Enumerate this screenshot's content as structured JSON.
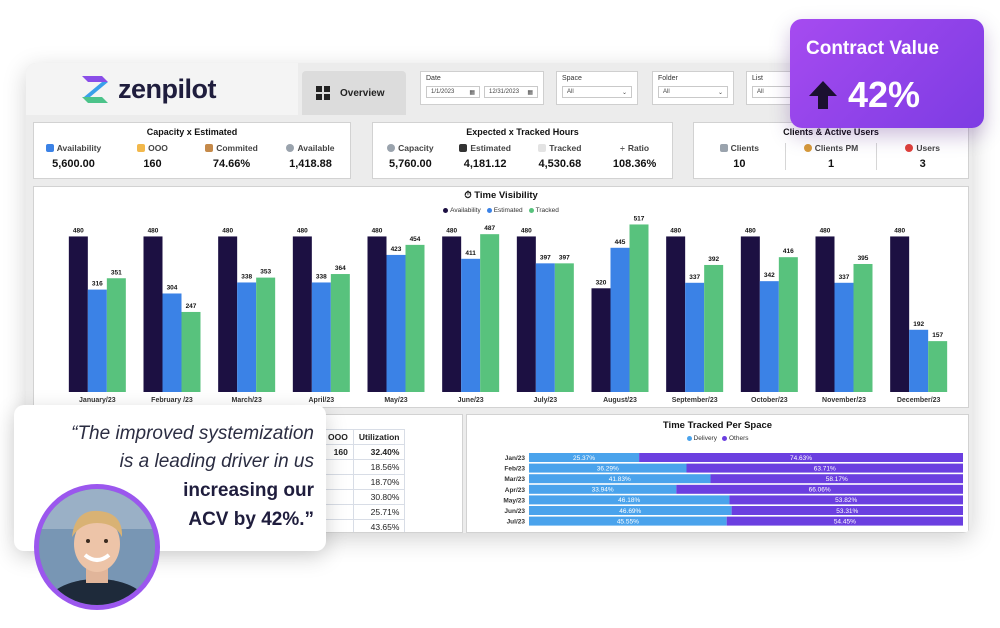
{
  "brand": {
    "name": "zenpilot"
  },
  "tabs": {
    "overview": "Overview"
  },
  "filters": {
    "date": {
      "label": "Date",
      "start": "1/1/2023",
      "end": "12/31/2023"
    },
    "space": {
      "label": "Space",
      "value": "All"
    },
    "folder": {
      "label": "Folder",
      "value": "All"
    },
    "list": {
      "label": "List",
      "value": "All"
    }
  },
  "cards": {
    "capacity_estimated": {
      "title": "Capacity x Estimated",
      "kpis": [
        {
          "label": "Availability",
          "value": "5,600.00",
          "icon": "bar-chart-icon"
        },
        {
          "label": "OOO",
          "value": "160",
          "icon": "beach-icon"
        },
        {
          "label": "Commited",
          "value": "74.66%",
          "icon": "hourglass-icon"
        },
        {
          "label": "Available",
          "value": "1,418.88",
          "icon": "gauge-icon"
        }
      ]
    },
    "expected_tracked": {
      "title": "Expected x Tracked Hours",
      "kpis": [
        {
          "label": "Capacity",
          "value": "5,760.00",
          "icon": "gauge-icon"
        },
        {
          "label": "Estimated",
          "value": "4,181.12",
          "icon": "stopwatch-icon"
        },
        {
          "label": "Tracked",
          "value": "4,530.68",
          "icon": "clipboard-icon"
        },
        {
          "label": "Ratio",
          "value": "108.36%",
          "icon": "divide-icon"
        }
      ]
    },
    "clients_users": {
      "title": "Clients & Active Users",
      "kpis": [
        {
          "label": "Clients",
          "value": "10",
          "icon": "cart-icon"
        },
        {
          "label": "Clients PM",
          "value": "1",
          "icon": "person-icon"
        },
        {
          "label": "Users",
          "value": "3",
          "icon": "pin-icon"
        }
      ]
    }
  },
  "chart_data": [
    {
      "type": "bar",
      "title": "Time Visibility",
      "categories": [
        "January/23",
        "February /23",
        "March/23",
        "April/23",
        "May/23",
        "June/23",
        "July/23",
        "August/23",
        "September/23",
        "October/23",
        "November/23",
        "December/23"
      ],
      "series": [
        {
          "name": "Availability",
          "color": "#1c1042",
          "values": [
            480,
            480,
            480,
            480,
            480,
            480,
            480,
            320,
            480,
            480,
            480,
            480
          ]
        },
        {
          "name": "Estimated",
          "color": "#3b82e6",
          "values": [
            316,
            304,
            338,
            338,
            423,
            411,
            397,
            445,
            337,
            342,
            337,
            192
          ]
        },
        {
          "name": "Tracked",
          "color": "#58c27d",
          "values": [
            351,
            247,
            353,
            364,
            454,
            487,
            397,
            517,
            392,
            416,
            395,
            157
          ]
        }
      ],
      "ylim": [
        0,
        540
      ],
      "legend": "top-center"
    },
    {
      "type": "bar",
      "title": "Time Tracked Per Space",
      "orientation": "horizontal",
      "stacked": true,
      "categories": [
        "Jan/23",
        "Feb/23",
        "Mar/23",
        "Apr/23",
        "May/23",
        "Jun/23",
        "Jul/23"
      ],
      "series": [
        {
          "name": "Delivery",
          "color": "#4aa3ec",
          "values": [
            25.37,
            36.29,
            41.83,
            33.94,
            46.18,
            46.69,
            45.55
          ],
          "labels": [
            "25.37%",
            "36.29%",
            "41.83%",
            "33.94%",
            "46.18%",
            "46.69%",
            "45.55%"
          ]
        },
        {
          "name": "Others",
          "color": "#6b3fe0",
          "values": [
            74.63,
            63.71,
            58.17,
            66.06,
            53.82,
            53.31,
            54.45
          ],
          "labels": [
            "74.63%",
            "63.71%",
            "58.17%",
            "66.06%",
            "53.82%",
            "53.31%",
            "54.45%"
          ]
        }
      ],
      "legend": "top-center"
    }
  ],
  "utilization": {
    "ooo_header": "OOO",
    "util_header": "Utilization",
    "ooo_value": "160",
    "rows": [
      "32.40%",
      "18.56%",
      "18.70%",
      "30.80%",
      "25.71%",
      "43.65%"
    ]
  },
  "badge": {
    "title": "Contract Value",
    "value": "42%"
  },
  "quote": {
    "line1": "“The improved systemization",
    "line2": "is a leading driver in us",
    "line3": "increasing our",
    "line4": "ACV by 42%.”"
  }
}
